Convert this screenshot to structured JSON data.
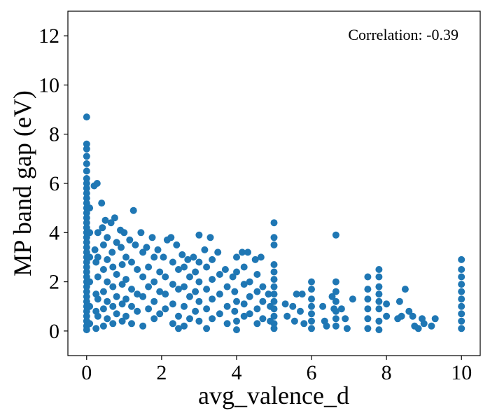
{
  "chart_data": {
    "type": "scatter",
    "title": "",
    "xlabel": "avg_valence_d",
    "ylabel": "MP band gap (eV)",
    "xlim": [
      -0.5,
      10.5
    ],
    "ylim": [
      -1,
      13
    ],
    "x_ticks": [
      0,
      2,
      4,
      6,
      8,
      10
    ],
    "y_ticks": [
      0,
      2,
      4,
      6,
      8,
      10,
      12
    ],
    "grid": false,
    "legend": "none",
    "annotation": "Correlation: -0.39",
    "series": [
      {
        "color": "#1f77b4",
        "points": [
          [
            0,
            8.7
          ],
          [
            0,
            7.6
          ],
          [
            0,
            7.4
          ],
          [
            0,
            7.1
          ],
          [
            0,
            6.8
          ],
          [
            0,
            6.5
          ],
          [
            0,
            6.2
          ],
          [
            0,
            6.0
          ],
          [
            0,
            5.8
          ],
          [
            0,
            5.6
          ],
          [
            0,
            5.4
          ],
          [
            0,
            5.2
          ],
          [
            0,
            5.0
          ],
          [
            0,
            4.8
          ],
          [
            0,
            4.6
          ],
          [
            0,
            4.4
          ],
          [
            0,
            4.2
          ],
          [
            0,
            4.0
          ],
          [
            0,
            3.8
          ],
          [
            0,
            3.6
          ],
          [
            0,
            3.4
          ],
          [
            0,
            3.2
          ],
          [
            0,
            3.0
          ],
          [
            0,
            2.8
          ],
          [
            0,
            2.6
          ],
          [
            0,
            2.4
          ],
          [
            0,
            2.2
          ],
          [
            0,
            2.0
          ],
          [
            0,
            1.8
          ],
          [
            0,
            1.6
          ],
          [
            0,
            1.4
          ],
          [
            0,
            1.2
          ],
          [
            0,
            1.0
          ],
          [
            0,
            0.8
          ],
          [
            0,
            0.6
          ],
          [
            0,
            0.4
          ],
          [
            0,
            0.2
          ],
          [
            0,
            0.05
          ],
          [
            0.08,
            5.0
          ],
          [
            0.08,
            4.0
          ],
          [
            0.08,
            3.0
          ],
          [
            0.08,
            2.0
          ],
          [
            0.08,
            1.0
          ],
          [
            0.08,
            0.3
          ],
          [
            0.2,
            5.9
          ],
          [
            0.22,
            3.3
          ],
          [
            0.25,
            2.8
          ],
          [
            0.25,
            1.5
          ],
          [
            0.25,
            0.8
          ],
          [
            0.25,
            0.1
          ],
          [
            0.28,
            6.0
          ],
          [
            0.3,
            4.0
          ],
          [
            0.3,
            3.0
          ],
          [
            0.3,
            2.2
          ],
          [
            0.3,
            1.3
          ],
          [
            0.3,
            0.6
          ],
          [
            0.4,
            5.2
          ],
          [
            0.42,
            4.2
          ],
          [
            0.45,
            3.5
          ],
          [
            0.45,
            2.5
          ],
          [
            0.45,
            1.6
          ],
          [
            0.45,
            0.9
          ],
          [
            0.45,
            0.2
          ],
          [
            0.5,
            4.5
          ],
          [
            0.55,
            3.8
          ],
          [
            0.55,
            2.9
          ],
          [
            0.55,
            2.0
          ],
          [
            0.55,
            1.2
          ],
          [
            0.55,
            0.5
          ],
          [
            0.65,
            4.4
          ],
          [
            0.68,
            3.2
          ],
          [
            0.7,
            2.6
          ],
          [
            0.7,
            1.8
          ],
          [
            0.7,
            1.0
          ],
          [
            0.7,
            0.3
          ],
          [
            0.75,
            4.6
          ],
          [
            0.8,
            3.6
          ],
          [
            0.8,
            2.3
          ],
          [
            0.8,
            1.4
          ],
          [
            0.8,
            0.7
          ],
          [
            0.9,
            4.1
          ],
          [
            0.92,
            3.4
          ],
          [
            0.95,
            2.7
          ],
          [
            0.95,
            1.9
          ],
          [
            0.95,
            1.1
          ],
          [
            0.95,
            0.4
          ],
          [
            1.0,
            4.0
          ],
          [
            1.05,
            3.0
          ],
          [
            1.05,
            2.1
          ],
          [
            1.05,
            1.3
          ],
          [
            1.05,
            0.6
          ],
          [
            1.15,
            3.7
          ],
          [
            1.2,
            2.8
          ],
          [
            1.2,
            1.7
          ],
          [
            1.2,
            1.0
          ],
          [
            1.2,
            0.3
          ],
          [
            1.25,
            4.9
          ],
          [
            1.3,
            3.5
          ],
          [
            1.35,
            2.5
          ],
          [
            1.35,
            1.5
          ],
          [
            1.35,
            0.8
          ],
          [
            1.45,
            4.0
          ],
          [
            1.5,
            3.2
          ],
          [
            1.5,
            2.2
          ],
          [
            1.5,
            1.4
          ],
          [
            1.5,
            0.2
          ],
          [
            1.6,
            3.4
          ],
          [
            1.65,
            2.6
          ],
          [
            1.65,
            1.8
          ],
          [
            1.65,
            0.9
          ],
          [
            1.75,
            3.8
          ],
          [
            1.8,
            3.0
          ],
          [
            1.8,
            2.0
          ],
          [
            1.8,
            1.2
          ],
          [
            1.8,
            0.5
          ],
          [
            1.9,
            3.3
          ],
          [
            1.95,
            2.4
          ],
          [
            1.95,
            1.6
          ],
          [
            1.95,
            0.7
          ],
          [
            2.05,
            3.0
          ],
          [
            2.1,
            2.2
          ],
          [
            2.1,
            1.5
          ],
          [
            2.1,
            0.9
          ],
          [
            2.15,
            3.7
          ],
          [
            2.25,
            3.8
          ],
          [
            2.3,
            2.8
          ],
          [
            2.3,
            1.9
          ],
          [
            2.3,
            1.1
          ],
          [
            2.3,
            0.3
          ],
          [
            2.4,
            3.5
          ],
          [
            2.45,
            2.5
          ],
          [
            2.45,
            1.7
          ],
          [
            2.45,
            0.6
          ],
          [
            2.45,
            0.1
          ],
          [
            2.55,
            3.1
          ],
          [
            2.6,
            2.6
          ],
          [
            2.6,
            1.8
          ],
          [
            2.6,
            1.0
          ],
          [
            2.6,
            0.2
          ],
          [
            2.7,
            2.9
          ],
          [
            2.75,
            2.2
          ],
          [
            2.75,
            1.4
          ],
          [
            2.75,
            0.5
          ],
          [
            2.85,
            3.0
          ],
          [
            2.9,
            2.4
          ],
          [
            2.9,
            1.6
          ],
          [
            2.9,
            0.8
          ],
          [
            3.0,
            3.9
          ],
          [
            3.0,
            2.8
          ],
          [
            3.0,
            2.0
          ],
          [
            3.0,
            1.2
          ],
          [
            3.0,
            0.4
          ],
          [
            3.15,
            3.3
          ],
          [
            3.2,
            2.6
          ],
          [
            3.2,
            1.7
          ],
          [
            3.2,
            0.9
          ],
          [
            3.2,
            0.1
          ],
          [
            3.3,
            3.8
          ],
          [
            3.35,
            2.9
          ],
          [
            3.35,
            2.1
          ],
          [
            3.35,
            1.3
          ],
          [
            3.35,
            0.5
          ],
          [
            3.5,
            3.2
          ],
          [
            3.55,
            2.3
          ],
          [
            3.55,
            1.5
          ],
          [
            3.55,
            0.7
          ],
          [
            3.7,
            2.5
          ],
          [
            3.75,
            1.8
          ],
          [
            3.75,
            1.0
          ],
          [
            3.75,
            0.3
          ],
          [
            3.9,
            2.2
          ],
          [
            3.95,
            1.6
          ],
          [
            3.95,
            0.8
          ],
          [
            4.0,
            3.0
          ],
          [
            4.0,
            2.4
          ],
          [
            4.0,
            1.2
          ],
          [
            4.0,
            0.4
          ],
          [
            4.0,
            0.05
          ],
          [
            4.15,
            3.2
          ],
          [
            4.2,
            2.6
          ],
          [
            4.2,
            1.9
          ],
          [
            4.2,
            1.1
          ],
          [
            4.2,
            0.6
          ],
          [
            4.3,
            3.2
          ],
          [
            4.35,
            2.0
          ],
          [
            4.35,
            1.4
          ],
          [
            4.35,
            0.7
          ],
          [
            4.5,
            2.9
          ],
          [
            4.55,
            2.3
          ],
          [
            4.55,
            1.6
          ],
          [
            4.55,
            0.9
          ],
          [
            4.55,
            0.3
          ],
          [
            4.65,
            3.0
          ],
          [
            4.7,
            1.8
          ],
          [
            4.7,
            1.2
          ],
          [
            4.7,
            0.5
          ],
          [
            4.85,
            1.5
          ],
          [
            4.9,
            1.0
          ],
          [
            4.9,
            0.4
          ],
          [
            5.0,
            4.4
          ],
          [
            5.0,
            3.8
          ],
          [
            5.0,
            3.5
          ],
          [
            5.0,
            2.7
          ],
          [
            5.0,
            2.4
          ],
          [
            5.0,
            2.1
          ],
          [
            5.0,
            1.8
          ],
          [
            5.0,
            1.5
          ],
          [
            5.0,
            1.2
          ],
          [
            5.0,
            0.9
          ],
          [
            5.0,
            0.6
          ],
          [
            5.0,
            0.3
          ],
          [
            5.0,
            0.1
          ],
          [
            5.3,
            1.1
          ],
          [
            5.35,
            0.6
          ],
          [
            5.5,
            1.0
          ],
          [
            5.55,
            0.4
          ],
          [
            5.6,
            1.5
          ],
          [
            5.7,
            0.8
          ],
          [
            5.75,
            1.5
          ],
          [
            5.8,
            0.3
          ],
          [
            6.0,
            2.0
          ],
          [
            6.0,
            1.7
          ],
          [
            6.0,
            1.3
          ],
          [
            6.0,
            1.0
          ],
          [
            6.0,
            0.7
          ],
          [
            6.0,
            0.4
          ],
          [
            6.0,
            0.1
          ],
          [
            6.3,
            1.0
          ],
          [
            6.35,
            0.4
          ],
          [
            6.4,
            0.2
          ],
          [
            6.55,
            1.4
          ],
          [
            6.6,
            0.9
          ],
          [
            6.65,
            3.9
          ],
          [
            6.65,
            2.0
          ],
          [
            6.65,
            1.6
          ],
          [
            6.65,
            1.2
          ],
          [
            6.65,
            0.8
          ],
          [
            6.65,
            0.5
          ],
          [
            6.65,
            0.2
          ],
          [
            6.8,
            0.9
          ],
          [
            6.9,
            0.5
          ],
          [
            6.95,
            0.1
          ],
          [
            7.1,
            1.3
          ],
          [
            7.5,
            2.2
          ],
          [
            7.5,
            1.7
          ],
          [
            7.5,
            1.3
          ],
          [
            7.5,
            0.9
          ],
          [
            7.5,
            0.5
          ],
          [
            7.5,
            0.1
          ],
          [
            7.8,
            2.5
          ],
          [
            7.8,
            2.2
          ],
          [
            7.8,
            1.8
          ],
          [
            7.8,
            1.5
          ],
          [
            7.8,
            1.2
          ],
          [
            7.8,
            0.9
          ],
          [
            7.8,
            0.4
          ],
          [
            7.8,
            0.05
          ],
          [
            8.0,
            0.6
          ],
          [
            8.0,
            1.1
          ],
          [
            8.3,
            0.5
          ],
          [
            8.35,
            1.2
          ],
          [
            8.4,
            0.6
          ],
          [
            8.5,
            1.7
          ],
          [
            8.6,
            0.8
          ],
          [
            8.7,
            0.6
          ],
          [
            8.75,
            0.2
          ],
          [
            8.85,
            0.1
          ],
          [
            8.95,
            0.5
          ],
          [
            9.0,
            0.3
          ],
          [
            9.2,
            0.2
          ],
          [
            9.3,
            0.5
          ],
          [
            10.0,
            2.9
          ],
          [
            10.0,
            2.5
          ],
          [
            10.0,
            2.2
          ],
          [
            10.0,
            1.9
          ],
          [
            10.0,
            1.6
          ],
          [
            10.0,
            1.3
          ],
          [
            10.0,
            1.0
          ],
          [
            10.0,
            0.7
          ],
          [
            10.0,
            0.4
          ],
          [
            10.0,
            0.1
          ]
        ]
      }
    ]
  }
}
